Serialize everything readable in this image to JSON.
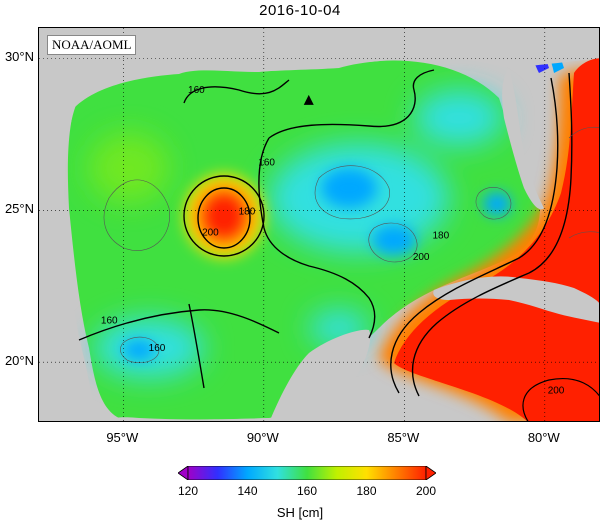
{
  "title": "2016-10-04",
  "credit": "NOAA/AOML",
  "axes": {
    "lat_ticks": [
      {
        "label": "30°N",
        "value": 30
      },
      {
        "label": "25°N",
        "value": 25
      },
      {
        "label": "20°N",
        "value": 20
      }
    ],
    "lon_ticks": [
      {
        "label": "95°W",
        "value": -95
      },
      {
        "label": "90°W",
        "value": -90
      },
      {
        "label": "85°W",
        "value": -85
      },
      {
        "label": "80°W",
        "value": -80
      }
    ],
    "lon_range": [
      -98,
      -78
    ],
    "lat_range": [
      18,
      31
    ],
    "grid": "dotted"
  },
  "colorbar": {
    "label": "SH [cm]",
    "min": 120,
    "max": 200,
    "ticks": [
      "120",
      "140",
      "160",
      "180",
      "200"
    ],
    "colors": [
      "#a000c8",
      "#3030ff",
      "#00a8ff",
      "#30e0e0",
      "#40e040",
      "#c0f000",
      "#ffe000",
      "#ff8000",
      "#ff2000"
    ]
  },
  "contour_labels": [
    {
      "text": "160",
      "lon": -95.5,
      "lat": 21.4
    },
    {
      "text": "160",
      "lon": -93.8,
      "lat": 20.5
    },
    {
      "text": "160",
      "lon": -92.4,
      "lat": 29.0
    },
    {
      "text": "160",
      "lon": -89.9,
      "lat": 26.6
    },
    {
      "text": "180",
      "lon": -90.6,
      "lat": 25.0
    },
    {
      "text": "200",
      "lon": -91.9,
      "lat": 24.3
    },
    {
      "text": "180",
      "lon": -83.7,
      "lat": 24.2
    },
    {
      "text": "200",
      "lon": -84.4,
      "lat": 23.5
    },
    {
      "text": "200",
      "lon": -79.6,
      "lat": 19.1
    }
  ],
  "marker": {
    "symbol": "triangle",
    "lon": -88.4,
    "lat": 28.6,
    "color": "#000000"
  }
}
